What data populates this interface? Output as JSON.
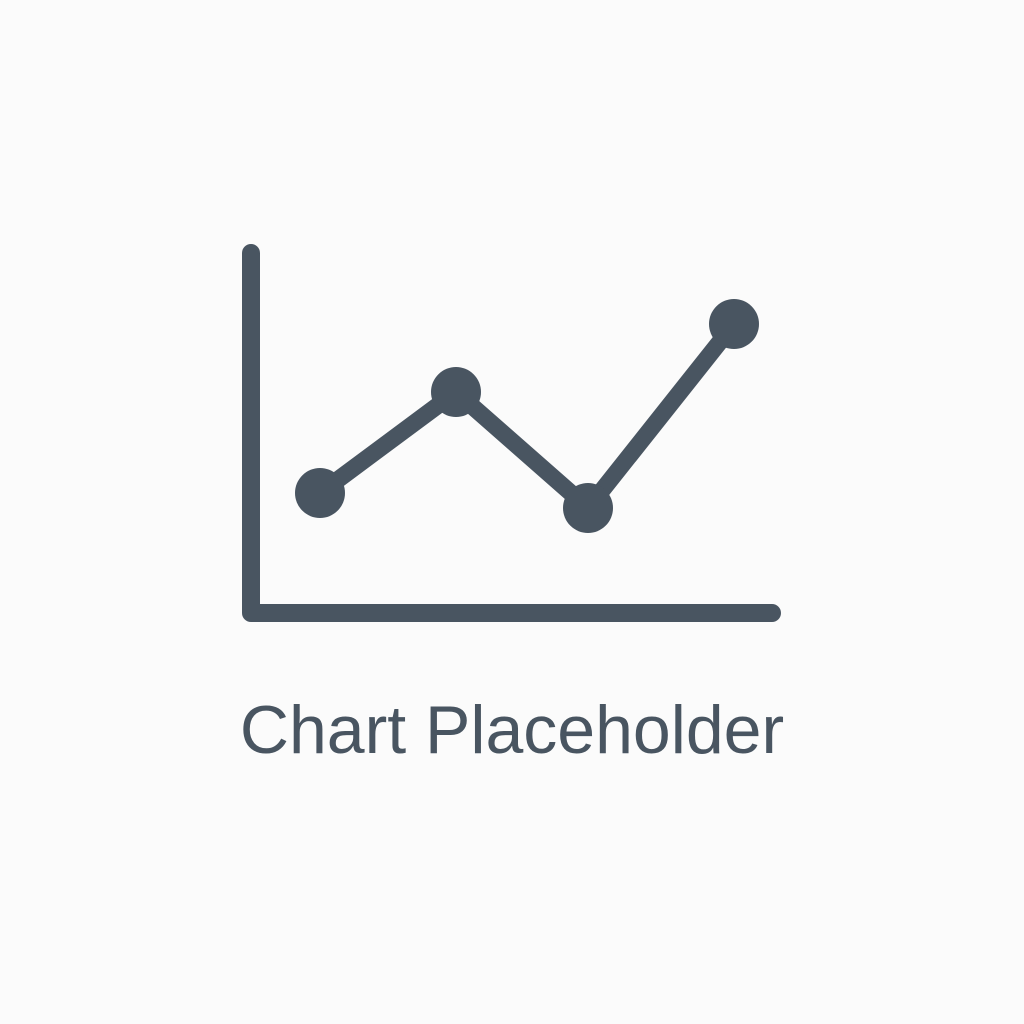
{
  "placeholder": {
    "label": "Chart Placeholder",
    "icon": "line-chart-icon",
    "color": "#495561",
    "background": "#fbfbfb"
  }
}
